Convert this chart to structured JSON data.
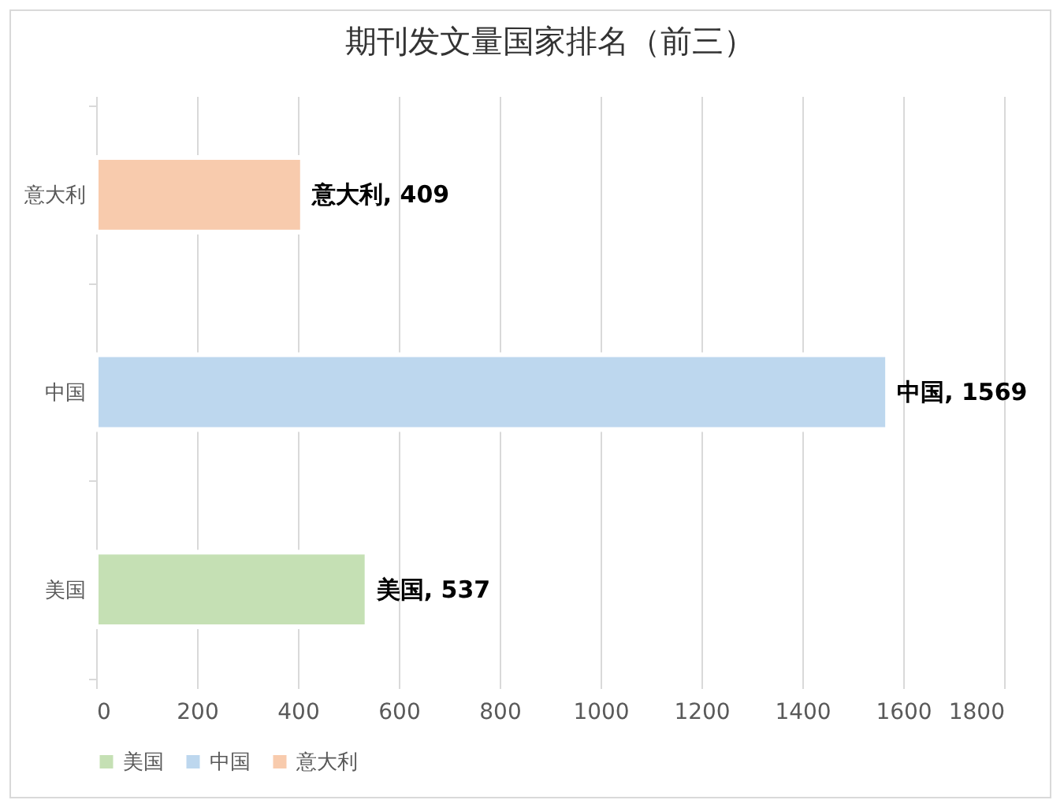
{
  "chart_data": {
    "type": "bar",
    "title": "期刊发文量国家排名（前三）",
    "orientation": "horizontal",
    "categories": [
      "意大利",
      "中国",
      "美国"
    ],
    "series": [
      {
        "name": "美国",
        "color": "#c5e0b4",
        "values": [
          null,
          null,
          537
        ],
        "value_labels": [
          null,
          null,
          "美国, 537"
        ]
      },
      {
        "name": "中国",
        "color": "#bdd7ee",
        "values": [
          null,
          1569,
          null
        ],
        "value_labels": [
          null,
          "中国, 1569",
          null
        ]
      },
      {
        "name": "意大利",
        "color": "#f8cbad",
        "values": [
          409,
          null,
          null
        ],
        "value_labels": [
          "意大利, 409",
          null,
          null
        ]
      }
    ],
    "xlim": [
      0,
      1800
    ],
    "xticks": [
      0,
      200,
      400,
      600,
      800,
      1000,
      1200,
      1400,
      1600,
      1800
    ],
    "grid": true,
    "legend": "bottom"
  }
}
